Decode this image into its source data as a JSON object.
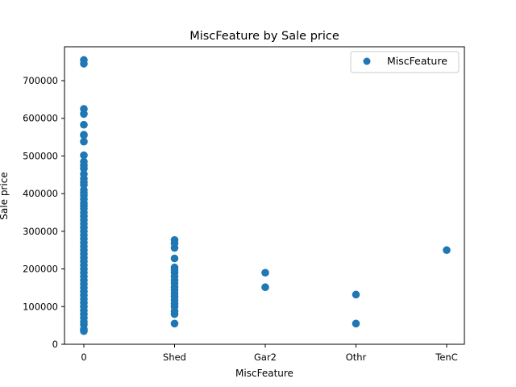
{
  "chart_data": {
    "type": "scatter",
    "title": "MiscFeature by Sale price",
    "xlabel": "MiscFeature",
    "ylabel": "Sale price",
    "categories": [
      "0",
      "Shed",
      "Gar2",
      "Othr",
      "TenC"
    ],
    "ylim": [
      0,
      790000
    ],
    "yticks": [
      0,
      100000,
      200000,
      300000,
      400000,
      500000,
      600000,
      700000
    ],
    "ytick_labels": [
      "0",
      "100000",
      "200000",
      "300000",
      "400000",
      "500000",
      "600000",
      "700000"
    ],
    "grid": false,
    "legend": {
      "position": "top-right",
      "entries": [
        "MiscFeature"
      ]
    },
    "color": "#1f77b4",
    "series": [
      {
        "name": "MiscFeature",
        "points": [
          {
            "x": "0",
            "y": 755000
          },
          {
            "x": "0",
            "y": 745000
          },
          {
            "x": "0",
            "y": 625000
          },
          {
            "x": "0",
            "y": 611657
          },
          {
            "x": "0",
            "y": 582933
          },
          {
            "x": "0",
            "y": 556581
          },
          {
            "x": "0",
            "y": 555000
          },
          {
            "x": "0",
            "y": 538000
          },
          {
            "x": "0",
            "y": 501837
          },
          {
            "x": "0",
            "y": 485000
          },
          {
            "x": "0",
            "y": 475000
          },
          {
            "x": "0",
            "y": 466500
          },
          {
            "x": "0",
            "y": 451950
          },
          {
            "x": "0",
            "y": 440000
          },
          {
            "x": "0",
            "y": 430000
          },
          {
            "x": "0",
            "y": 423000
          },
          {
            "x": "0",
            "y": 410000
          },
          {
            "x": "0",
            "y": 402000
          },
          {
            "x": "0",
            "y": 395000
          },
          {
            "x": "0",
            "y": 385000
          },
          {
            "x": "0",
            "y": 375000
          },
          {
            "x": "0",
            "y": 367294
          },
          {
            "x": "0",
            "y": 360000
          },
          {
            "x": "0",
            "y": 350000
          },
          {
            "x": "0",
            "y": 340000
          },
          {
            "x": "0",
            "y": 330000
          },
          {
            "x": "0",
            "y": 320000
          },
          {
            "x": "0",
            "y": 310000
          },
          {
            "x": "0",
            "y": 300000
          },
          {
            "x": "0",
            "y": 290000
          },
          {
            "x": "0",
            "y": 280000
          },
          {
            "x": "0",
            "y": 270000
          },
          {
            "x": "0",
            "y": 260000
          },
          {
            "x": "0",
            "y": 250000
          },
          {
            "x": "0",
            "y": 240000
          },
          {
            "x": "0",
            "y": 230000
          },
          {
            "x": "0",
            "y": 220000
          },
          {
            "x": "0",
            "y": 210000
          },
          {
            "x": "0",
            "y": 200000
          },
          {
            "x": "0",
            "y": 190000
          },
          {
            "x": "0",
            "y": 180000
          },
          {
            "x": "0",
            "y": 170000
          },
          {
            "x": "0",
            "y": 160000
          },
          {
            "x": "0",
            "y": 150000
          },
          {
            "x": "0",
            "y": 140000
          },
          {
            "x": "0",
            "y": 130000
          },
          {
            "x": "0",
            "y": 120000
          },
          {
            "x": "0",
            "y": 110000
          },
          {
            "x": "0",
            "y": 100000
          },
          {
            "x": "0",
            "y": 90000
          },
          {
            "x": "0",
            "y": 80000
          },
          {
            "x": "0",
            "y": 70000
          },
          {
            "x": "0",
            "y": 60000
          },
          {
            "x": "0",
            "y": 52500
          },
          {
            "x": "0",
            "y": 40000
          },
          {
            "x": "0",
            "y": 34900
          },
          {
            "x": "Shed",
            "y": 277000
          },
          {
            "x": "Shed",
            "y": 268000
          },
          {
            "x": "Shed",
            "y": 256000
          },
          {
            "x": "Shed",
            "y": 228000
          },
          {
            "x": "Shed",
            "y": 204000
          },
          {
            "x": "Shed",
            "y": 197000
          },
          {
            "x": "Shed",
            "y": 190000
          },
          {
            "x": "Shed",
            "y": 180000
          },
          {
            "x": "Shed",
            "y": 170000
          },
          {
            "x": "Shed",
            "y": 162000
          },
          {
            "x": "Shed",
            "y": 152000
          },
          {
            "x": "Shed",
            "y": 144000
          },
          {
            "x": "Shed",
            "y": 135000
          },
          {
            "x": "Shed",
            "y": 126000
          },
          {
            "x": "Shed",
            "y": 117000
          },
          {
            "x": "Shed",
            "y": 108000
          },
          {
            "x": "Shed",
            "y": 100000
          },
          {
            "x": "Shed",
            "y": 88000
          },
          {
            "x": "Shed",
            "y": 80000
          },
          {
            "x": "Shed",
            "y": 55000
          },
          {
            "x": "Gar2",
            "y": 190000
          },
          {
            "x": "Gar2",
            "y": 151500
          },
          {
            "x": "Othr",
            "y": 132000
          },
          {
            "x": "Othr",
            "y": 55000
          },
          {
            "x": "TenC",
            "y": 250000
          }
        ]
      }
    ]
  }
}
